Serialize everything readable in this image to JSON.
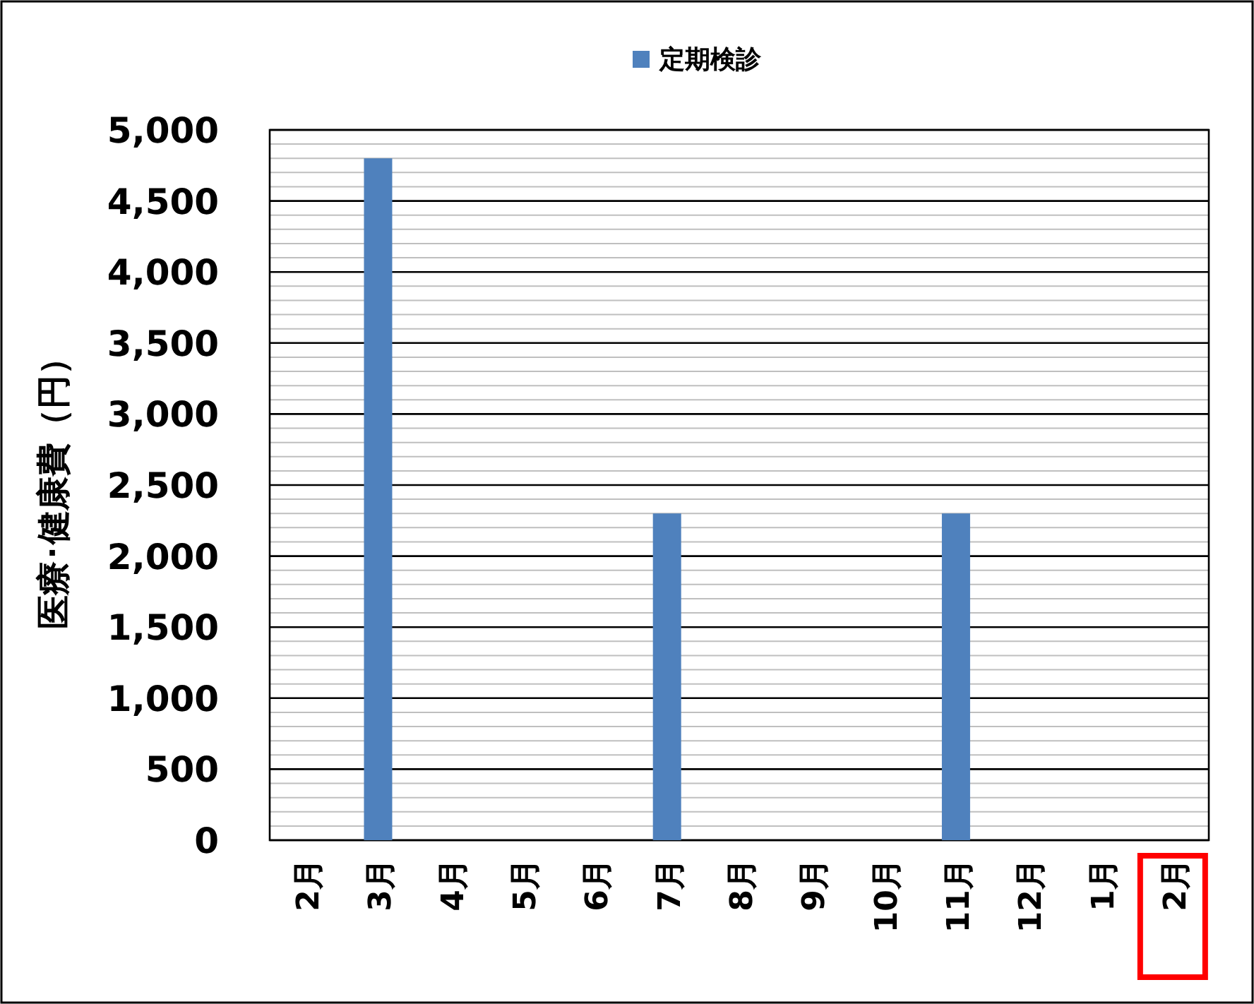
{
  "chart_data": {
    "type": "bar",
    "ylabel": "医療･健康費（円）",
    "legend": "top",
    "grid": "y",
    "categories": [
      "2月",
      "3月",
      "4月",
      "5月",
      "6月",
      "7月",
      "8月",
      "9月",
      "10月",
      "11月",
      "12月",
      "1月",
      "2月"
    ],
    "series": [
      {
        "name": "定期検診",
        "color": "#4f81bd",
        "values": [
          null,
          4800,
          null,
          null,
          null,
          2300,
          null,
          null,
          null,
          2300,
          null,
          null,
          null
        ]
      }
    ],
    "ylim": [
      0,
      5000
    ],
    "yticks": [
      0,
      {
        "value": 100,
        "label": null
      },
      {
        "value": 200,
        "label": null
      },
      {
        "value": 300,
        "label": null
      },
      {
        "value": 400,
        "label": null
      },
      500,
      {
        "value": 600,
        "label": null
      },
      {
        "value": 700,
        "label": null
      },
      {
        "value": 800,
        "label": null
      },
      {
        "value": 900,
        "label": null
      },
      {
        "value": 1000,
        "label": "1,000"
      },
      {
        "value": 1100,
        "label": null
      },
      {
        "value": 1200,
        "label": null
      },
      {
        "value": 1300,
        "label": null
      },
      {
        "value": 1400,
        "label": null
      },
      {
        "value": 1500,
        "label": "1,500"
      },
      {
        "value": 1600,
        "label": null
      },
      {
        "value": 1700,
        "label": null
      },
      {
        "value": 1800,
        "label": null
      },
      {
        "value": 1900,
        "label": null
      },
      {
        "value": 2000,
        "label": "2,000"
      },
      {
        "value": 2100,
        "label": null
      },
      {
        "value": 2200,
        "label": null
      },
      {
        "value": 2300,
        "label": null
      },
      {
        "value": 2400,
        "label": null
      },
      {
        "value": 2500,
        "label": "2,500"
      },
      {
        "value": 2600,
        "label": null
      },
      {
        "value": 2700,
        "label": null
      },
      {
        "value": 2800,
        "label": null
      },
      {
        "value": 2900,
        "label": null
      },
      {
        "value": 3000,
        "label": "3,000"
      },
      {
        "value": 3100,
        "label": null
      },
      {
        "value": 3200,
        "label": null
      },
      {
        "value": 3300,
        "label": null
      },
      {
        "value": 3400,
        "label": null
      },
      {
        "value": 3500,
        "label": "3,500"
      },
      {
        "value": 3600,
        "label": null
      },
      {
        "value": 3700,
        "label": null
      },
      {
        "value": 3800,
        "label": null
      },
      {
        "value": 3900,
        "label": null
      },
      {
        "value": 4000,
        "label": "4,000"
      },
      {
        "value": 4100,
        "label": null
      },
      {
        "value": 4200,
        "label": null
      },
      {
        "value": 4300,
        "label": null
      },
      {
        "value": 4400,
        "label": null
      },
      {
        "value": 4500,
        "label": "4,500"
      },
      {
        "value": 4600,
        "label": null
      },
      {
        "value": 4700,
        "label": null
      },
      {
        "value": 4800,
        "label": null
      },
      {
        "value": 4900,
        "label": null
      },
      {
        "value": 5000,
        "label": "5,000"
      }
    ]
  }
}
